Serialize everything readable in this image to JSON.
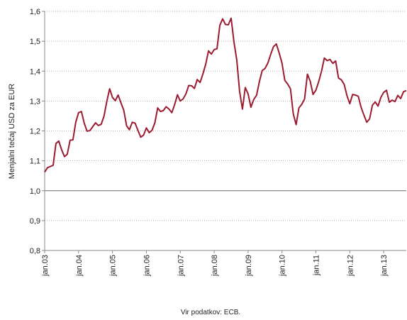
{
  "chart_data": {
    "type": "line",
    "y_label": "Menjalni tečaj USD za EUR",
    "source": "Vir podatkov:  ECB.",
    "categories": [
      "jan.03",
      null,
      null,
      null,
      null,
      null,
      null,
      null,
      null,
      null,
      null,
      null,
      "jan.04",
      null,
      null,
      null,
      null,
      null,
      null,
      null,
      null,
      null,
      null,
      null,
      "jan.05",
      null,
      null,
      null,
      null,
      null,
      null,
      null,
      null,
      null,
      null,
      null,
      "jan.06",
      null,
      null,
      null,
      null,
      null,
      null,
      null,
      null,
      null,
      null,
      null,
      "jan.07",
      null,
      null,
      null,
      null,
      null,
      null,
      null,
      null,
      null,
      null,
      null,
      "jan.08",
      null,
      null,
      null,
      null,
      null,
      null,
      null,
      null,
      null,
      null,
      null,
      "jan.09",
      null,
      null,
      null,
      null,
      null,
      null,
      null,
      null,
      null,
      null,
      null,
      "jan.10",
      null,
      null,
      null,
      null,
      null,
      null,
      null,
      null,
      null,
      null,
      null,
      "jan.11",
      null,
      null,
      null,
      null,
      null,
      null,
      null,
      null,
      null,
      null,
      null,
      "jan.12",
      null,
      null,
      null,
      null,
      null,
      null,
      null,
      null,
      null,
      null,
      null,
      "jan.13",
      null,
      null,
      null,
      null,
      null,
      null,
      null,
      null
    ],
    "series": [
      {
        "name": "USD/EUR",
        "color": "#9b1c31",
        "values": [
          1.062,
          1.077,
          1.081,
          1.085,
          1.158,
          1.166,
          1.137,
          1.114,
          1.122,
          1.169,
          1.17,
          1.229,
          1.261,
          1.265,
          1.226,
          1.199,
          1.201,
          1.214,
          1.227,
          1.218,
          1.222,
          1.249,
          1.299,
          1.341,
          1.312,
          1.301,
          1.32,
          1.294,
          1.269,
          1.217,
          1.204,
          1.229,
          1.226,
          1.202,
          1.179,
          1.186,
          1.21,
          1.194,
          1.202,
          1.227,
          1.277,
          1.265,
          1.268,
          1.281,
          1.273,
          1.261,
          1.288,
          1.321,
          1.3,
          1.307,
          1.324,
          1.352,
          1.351,
          1.342,
          1.372,
          1.362,
          1.39,
          1.423,
          1.468,
          1.457,
          1.472,
          1.475,
          1.553,
          1.575,
          1.556,
          1.555,
          1.577,
          1.498,
          1.437,
          1.332,
          1.273,
          1.345,
          1.324,
          1.279,
          1.305,
          1.319,
          1.365,
          1.402,
          1.409,
          1.427,
          1.456,
          1.482,
          1.491,
          1.461,
          1.427,
          1.369,
          1.357,
          1.341,
          1.257,
          1.221,
          1.277,
          1.289,
          1.307,
          1.39,
          1.366,
          1.322,
          1.336,
          1.365,
          1.4,
          1.444,
          1.435,
          1.439,
          1.426,
          1.434,
          1.377,
          1.371,
          1.356,
          1.318,
          1.291,
          1.322,
          1.32,
          1.316,
          1.279,
          1.253,
          1.229,
          1.24,
          1.286,
          1.297,
          1.283,
          1.312,
          1.329,
          1.336,
          1.296,
          1.303,
          1.298,
          1.319,
          1.308,
          1.331,
          1.335
        ]
      }
    ],
    "ylim": [
      0.8,
      1.6
    ],
    "yticks": [
      {
        "value": 0.8,
        "label": "0,8"
      },
      {
        "value": 0.9,
        "label": "0,9"
      },
      {
        "value": 1.0,
        "label": "1,0"
      },
      {
        "value": 1.1,
        "label": "1,1"
      },
      {
        "value": 1.2,
        "label": "1,2"
      },
      {
        "value": 1.3,
        "label": "1,3"
      },
      {
        "value": 1.4,
        "label": "1,4"
      },
      {
        "value": 1.5,
        "label": "1,5"
      },
      {
        "value": 1.6,
        "label": "1,6"
      }
    ],
    "reference_line": 1.0,
    "grid": true
  }
}
